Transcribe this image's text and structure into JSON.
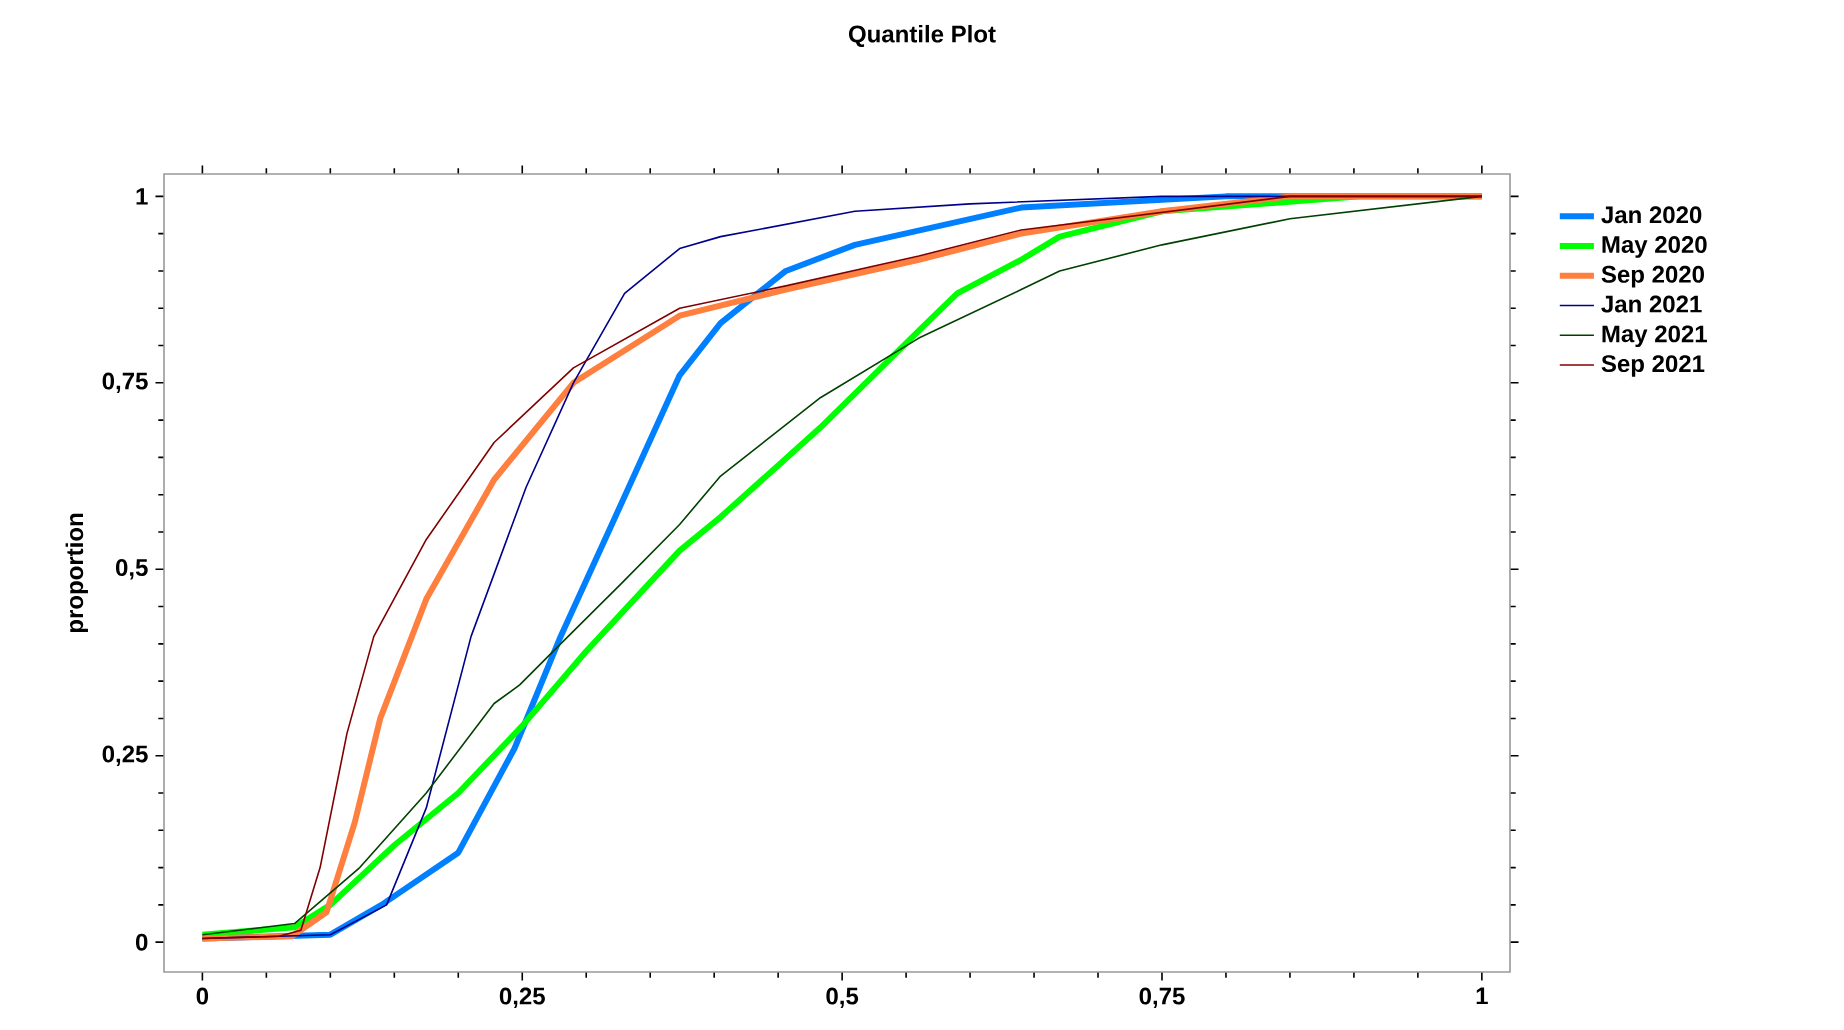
{
  "chart_data": {
    "type": "line",
    "title": "Quantile Plot",
    "ylabel": "proportion",
    "xlim": [
      -0.03,
      1.022
    ],
    "ylim": [
      -0.04,
      1.03
    ],
    "xticks": [
      {
        "value": 0,
        "label": "0"
      },
      {
        "value": 0.25,
        "label": "0,25"
      },
      {
        "value": 0.5,
        "label": "0,5"
      },
      {
        "value": 0.75,
        "label": "0,75"
      },
      {
        "value": 1,
        "label": "1"
      }
    ],
    "yticks": [
      {
        "value": 0,
        "label": "0"
      },
      {
        "value": 0.25,
        "label": "0,25"
      },
      {
        "value": 0.5,
        "label": "0,5"
      },
      {
        "value": 0.75,
        "label": "0,75"
      },
      {
        "value": 1,
        "label": "1"
      }
    ],
    "legend": "right",
    "grid": false,
    "marker": "none",
    "line_style": "solid",
    "series": [
      {
        "name": "Jan 2020",
        "color": "#0080ff",
        "x": [
          0,
          0.1,
          0.14,
          0.2,
          0.244,
          0.28,
          0.32,
          0.373,
          0.405,
          0.456,
          0.51,
          0.64,
          0.8,
          1.0
        ],
        "values": [
          0.005,
          0.01,
          0.05,
          0.12,
          0.26,
          0.41,
          0.56,
          0.76,
          0.83,
          0.9,
          0.935,
          0.985,
          1.0,
          1.0
        ]
      },
      {
        "name": "May 2020",
        "color": "#00ff00",
        "x": [
          0,
          0.072,
          0.1,
          0.15,
          0.2,
          0.25,
          0.3,
          0.373,
          0.405,
          0.483,
          0.56,
          0.59,
          0.64,
          0.67,
          0.75,
          0.905,
          1.0
        ],
        "values": [
          0.01,
          0.02,
          0.05,
          0.13,
          0.2,
          0.29,
          0.39,
          0.525,
          0.57,
          0.69,
          0.82,
          0.87,
          0.915,
          0.946,
          0.98,
          1.0,
          1.0
        ]
      },
      {
        "name": "Sep 2020",
        "color": "#ff7f3f",
        "x": [
          0,
          0.07,
          0.097,
          0.119,
          0.139,
          0.175,
          0.228,
          0.29,
          0.373,
          0.456,
          0.56,
          0.64,
          0.75,
          0.85,
          1.0
        ],
        "values": [
          0.005,
          0.008,
          0.04,
          0.16,
          0.3,
          0.46,
          0.62,
          0.75,
          0.84,
          0.875,
          0.915,
          0.95,
          0.98,
          1.0,
          1.0
        ]
      },
      {
        "name": "Jan 2021",
        "color": "#00008b",
        "x": [
          0,
          0.1,
          0.144,
          0.175,
          0.21,
          0.253,
          0.29,
          0.33,
          0.373,
          0.405,
          0.51,
          0.6,
          0.75,
          1.0
        ],
        "values": [
          0.005,
          0.01,
          0.05,
          0.18,
          0.41,
          0.61,
          0.75,
          0.87,
          0.93,
          0.946,
          0.98,
          0.99,
          1.0,
          1.0
        ]
      },
      {
        "name": "May 2021",
        "color": "#004000",
        "x": [
          0,
          0.072,
          0.123,
          0.175,
          0.228,
          0.248,
          0.28,
          0.327,
          0.373,
          0.405,
          0.483,
          0.56,
          0.64,
          0.67,
          0.75,
          0.85,
          1.0
        ],
        "values": [
          0.01,
          0.025,
          0.1,
          0.2,
          0.32,
          0.345,
          0.4,
          0.48,
          0.56,
          0.625,
          0.73,
          0.81,
          0.875,
          0.9,
          0.935,
          0.97,
          1.0
        ]
      },
      {
        "name": "Sep 2021",
        "color": "#800000",
        "x": [
          0,
          0.06,
          0.077,
          0.092,
          0.113,
          0.134,
          0.175,
          0.228,
          0.29,
          0.373,
          0.456,
          0.56,
          0.64,
          0.85,
          1.0
        ],
        "values": [
          0.005,
          0.008,
          0.016,
          0.1,
          0.28,
          0.41,
          0.54,
          0.67,
          0.77,
          0.85,
          0.88,
          0.92,
          0.955,
          1.0,
          1.0
        ]
      }
    ]
  }
}
